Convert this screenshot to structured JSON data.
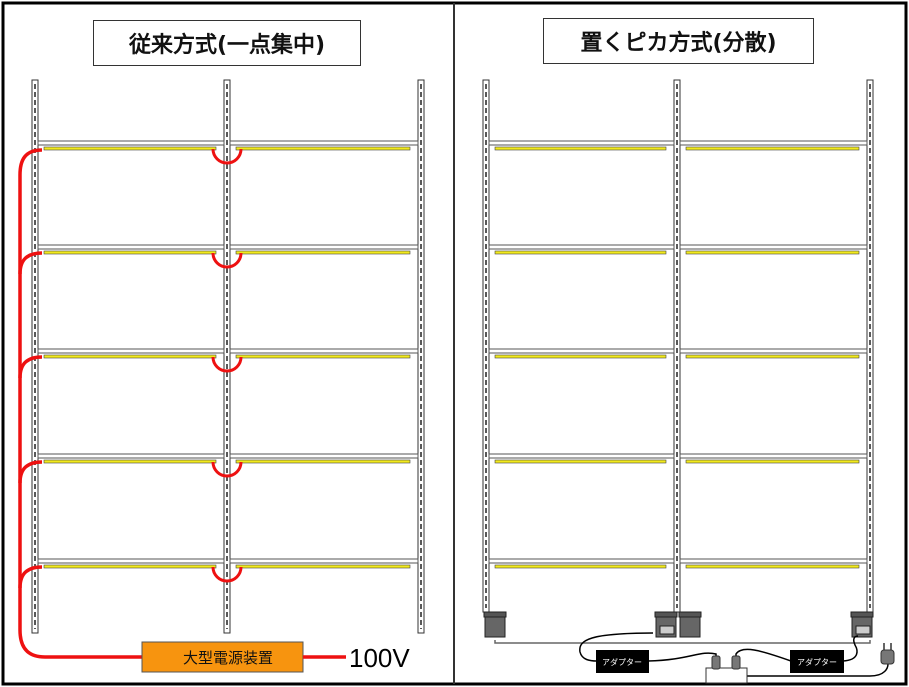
{
  "left_panel": {
    "title": "従来方式(一点集中)",
    "power_unit_label": "大型電源装置",
    "voltage_label": "100V"
  },
  "right_panel": {
    "title": "置くピカ方式(分散)",
    "adapter_labels": [
      "アダプター",
      "アダプター"
    ]
  },
  "colors": {
    "wire": "#ee1111",
    "light_bar": "#f2ea1c",
    "power_unit": "#f7940f",
    "adapter": "#000000"
  },
  "shelf_levels": 5,
  "shelf_columns": 2
}
